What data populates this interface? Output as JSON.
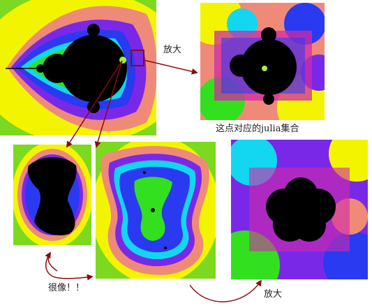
{
  "labels": {
    "zoom_top": "放大",
    "julia_caption": "这点对应的julia集合",
    "very_similar": "很像！！",
    "zoom_bottom": "放大"
  },
  "colors": {
    "yellow": "#f3f500",
    "orange": "#f5962e",
    "salmon": "#f08a78",
    "purple": "#7a28e8",
    "blue": "#2a3af0",
    "cyan": "#13d6f0",
    "green": "#33e01f",
    "magenta": "#d02aa8",
    "black": "#000000",
    "arrow": "#8b0b0b",
    "marker": "#a6f040"
  },
  "icons": {
    "mandelbrot_panel": "mandelbrot-set-image",
    "zoom_panel": "zoomed-mandelbrot-image",
    "julia_small": "julia-set-small-image",
    "julia_medium": "julia-set-medium-image",
    "julia_zoom": "julia-set-zoomed-image"
  }
}
